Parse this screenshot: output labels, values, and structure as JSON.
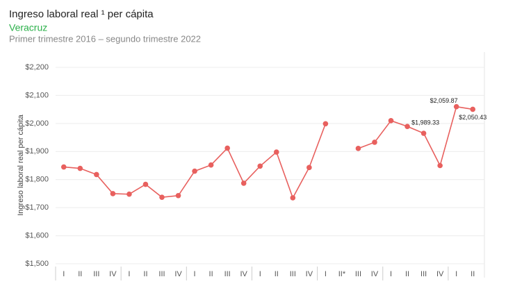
{
  "chart_data": {
    "type": "line",
    "title": "Ingreso laboral real ¹ per cápita",
    "subtitle": "Veracruz",
    "period": "Primer trimestre 2016 – segundo trimestre 2022",
    "y_label": "Ingreso laboral real per cápita",
    "categories": [
      "I",
      "II",
      "III",
      "IV",
      "I",
      "II",
      "III",
      "IV",
      "I",
      "II",
      "III",
      "IV",
      "I",
      "II",
      "III",
      "IV",
      "I",
      "II*",
      "III",
      "IV",
      "I",
      "II",
      "III",
      "IV",
      "I",
      "II"
    ],
    "series": [
      {
        "name": "Veracruz",
        "color": "#e8605e",
        "values": [
          1845,
          1840,
          1818,
          1750,
          1748,
          1783,
          1737,
          1743,
          1830,
          1852,
          1912,
          1787,
          1848,
          1898,
          1735,
          1843,
          1999,
          null,
          1911,
          1933,
          2010,
          1989.33,
          1965,
          1850,
          2059.87,
          2050.43
        ],
        "value_labels": [
          null,
          null,
          null,
          null,
          null,
          null,
          null,
          null,
          null,
          null,
          null,
          null,
          null,
          null,
          null,
          null,
          null,
          null,
          null,
          null,
          null,
          "$1,989.33",
          null,
          null,
          "$2,059.87",
          "$2,050.43"
        ]
      }
    ],
    "ylim": [
      1500,
      2200
    ],
    "yticks": [
      {
        "value": 1500,
        "label": "$1,500"
      },
      {
        "value": 1600,
        "label": "$1,600"
      },
      {
        "value": 1700,
        "label": "$1,700"
      },
      {
        "value": 1800,
        "label": "$1,800"
      },
      {
        "value": 1900,
        "label": "$1,900"
      },
      {
        "value": 2000,
        "label": "$2,000"
      },
      {
        "value": 2100,
        "label": "$2,100"
      },
      {
        "value": 2200,
        "label": "$2,200"
      }
    ],
    "grid": true
  }
}
